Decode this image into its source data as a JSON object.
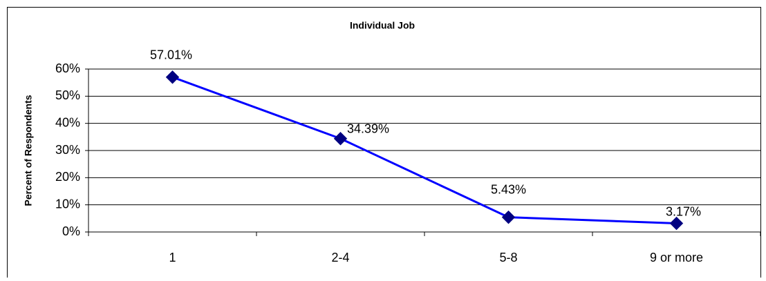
{
  "chart_data": {
    "type": "line",
    "title": "Individual Job",
    "y_label": "Percent of Respondents",
    "categories": [
      "1",
      "2-4",
      "5-8",
      "9 or more"
    ],
    "series": [
      {
        "name": "Individual Job",
        "color": "#0000ff",
        "marker_color": "#000080",
        "values": [
          57.01,
          34.39,
          5.43,
          3.17
        ],
        "value_labels": [
          "57.01%",
          "34.39%",
          "5.43%",
          "3.17%"
        ]
      }
    ],
    "ylim": [
      0,
      60
    ],
    "yticks": [
      {
        "value": 0,
        "label": "0%"
      },
      {
        "value": 10,
        "label": "10%"
      },
      {
        "value": 20,
        "label": "20%"
      },
      {
        "value": 30,
        "label": "30%"
      },
      {
        "value": 40,
        "label": "40%"
      },
      {
        "value": 50,
        "label": "50%"
      },
      {
        "value": 60,
        "label": "60%"
      }
    ],
    "grid": true
  }
}
